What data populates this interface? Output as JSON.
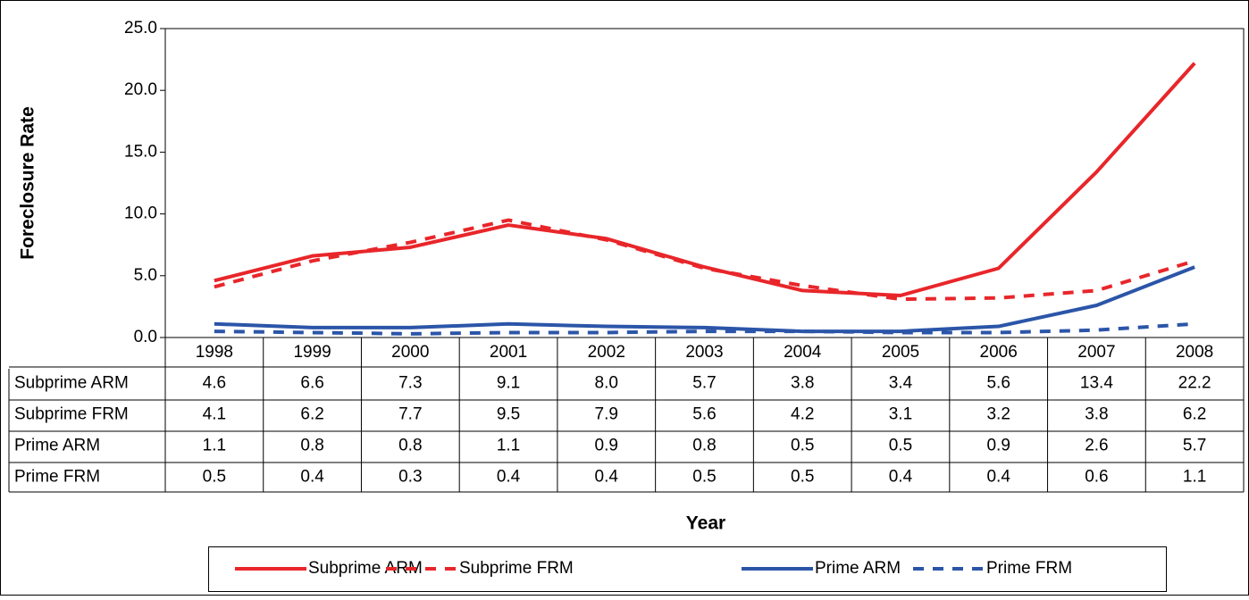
{
  "chart_data": {
    "type": "line",
    "y_label": "Foreclosure Rate",
    "x_label": "Year",
    "categories": [
      "1998",
      "1999",
      "2000",
      "2001",
      "2002",
      "2003",
      "2004",
      "2005",
      "2006",
      "2007",
      "2008"
    ],
    "series": [
      {
        "name": "Subprime ARM",
        "color": "#e8262a",
        "dash": false,
        "values": [
          4.6,
          6.6,
          7.3,
          9.1,
          8.0,
          5.7,
          3.8,
          3.4,
          5.6,
          13.4,
          22.2
        ],
        "value_labels": [
          "4.6",
          "6.6",
          "7.3",
          "9.1",
          "8.0",
          "5.7",
          "3.8",
          "3.4",
          "5.6",
          "13.4",
          "22.2"
        ]
      },
      {
        "name": "Subprime FRM",
        "color": "#e8262a",
        "dash": true,
        "values": [
          4.1,
          6.2,
          7.7,
          9.5,
          7.9,
          5.6,
          4.2,
          3.1,
          3.2,
          3.8,
          6.2
        ],
        "value_labels": [
          "4.1",
          "6.2",
          "7.7",
          "9.5",
          "7.9",
          "5.6",
          "4.2",
          "3.1",
          "3.2",
          "3.8",
          "6.2"
        ]
      },
      {
        "name": "Prime ARM",
        "color": "#2b55a8",
        "dash": false,
        "values": [
          1.1,
          0.8,
          0.8,
          1.1,
          0.9,
          0.8,
          0.5,
          0.5,
          0.9,
          2.6,
          5.7
        ],
        "value_labels": [
          "1.1",
          "0.8",
          "0.8",
          "1.1",
          "0.9",
          "0.8",
          "0.5",
          "0.5",
          "0.9",
          "2.6",
          "5.7"
        ]
      },
      {
        "name": "Prime FRM",
        "color": "#2b55a8",
        "dash": true,
        "values": [
          0.5,
          0.4,
          0.3,
          0.4,
          0.4,
          0.5,
          0.5,
          0.4,
          0.4,
          0.6,
          1.1
        ],
        "value_labels": [
          "0.5",
          "0.4",
          "0.3",
          "0.4",
          "0.4",
          "0.5",
          "0.5",
          "0.4",
          "0.4",
          "0.6",
          "1.1"
        ]
      }
    ],
    "ylim": [
      0,
      25
    ],
    "yticks": [
      {
        "value": 0,
        "label": "0.0"
      },
      {
        "value": 5,
        "label": "5.0"
      },
      {
        "value": 10,
        "label": "10.0"
      },
      {
        "value": 15,
        "label": "15.0"
      },
      {
        "value": 20,
        "label": "20.0"
      },
      {
        "value": 25,
        "label": "25.0"
      }
    ],
    "grid": false,
    "legend": "bottom"
  }
}
